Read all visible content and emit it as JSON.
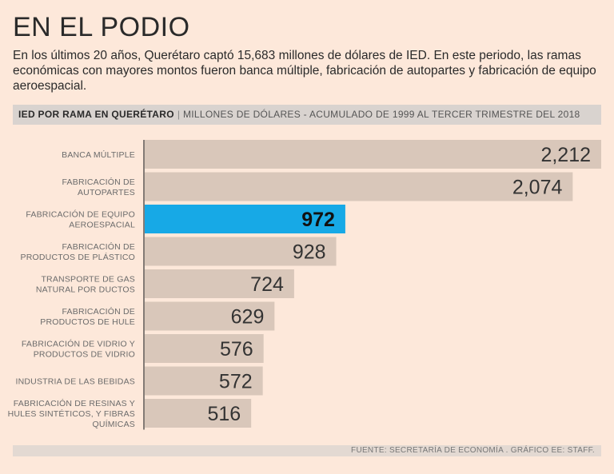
{
  "title": "EN EL PODIO",
  "intro": "En los últimos 20 años, Querétaro captó 15,683 millones de dólares de IED. En este periodo, las ramas económicas con mayores montos fueron banca múltiple, fabricación de autopartes y fabricación de equipo aeroespacial.",
  "subheader": {
    "strong": "IED POR RAMA EN QUERÉTARO",
    "separator": "|",
    "desc": "MILLONES DE DÓLARES - ACUMULADO DE 1999 AL TERCER TRIMESTRE DEL 2018"
  },
  "footer": "FUENTE: SECRETARÍA DE ECONOMÍA . GRÁFICO EE: STAFF.",
  "colors": {
    "bar": "#d9c7ba",
    "highlight": "#17a9e6",
    "axis": "#333333"
  },
  "chart_data": {
    "type": "bar",
    "orientation": "horizontal",
    "title": "IED POR RAMA EN QUERÉTARO",
    "ylabel": "MILLONES DE DÓLARES",
    "highlight_index": 2,
    "categories": [
      [
        "BANCA MÚLTIPLE"
      ],
      [
        "FABRICACIÓN DE",
        "AUTOPARTES"
      ],
      [
        "FABRICACIÓN DE EQUIPO",
        "AEROESPACIAL"
      ],
      [
        "FABRICACIÓN DE",
        "PRODUCTOS DE PLÁSTICO"
      ],
      [
        "TRANSPORTE DE GAS",
        "NATURAL POR DUCTOS"
      ],
      [
        "FABRICACIÓN DE",
        "PRODUCTOS DE HULE"
      ],
      [
        "FABRICACIÓN DE VIDRIO Y",
        "PRODUCTOS DE VIDRIO"
      ],
      [
        "INDUSTRIA DE LAS BEBIDAS"
      ],
      [
        "FABRICACIÓN DE RESINAS Y",
        "HULES SINTÉTICOS, Y FIBRAS",
        "QUÍMICAS"
      ]
    ],
    "values": [
      2212,
      2074,
      972,
      928,
      724,
      629,
      576,
      572,
      516
    ],
    "value_labels": [
      "2,212",
      "2,074",
      "972",
      "928",
      "724",
      "629",
      "576",
      "572",
      "516"
    ]
  }
}
